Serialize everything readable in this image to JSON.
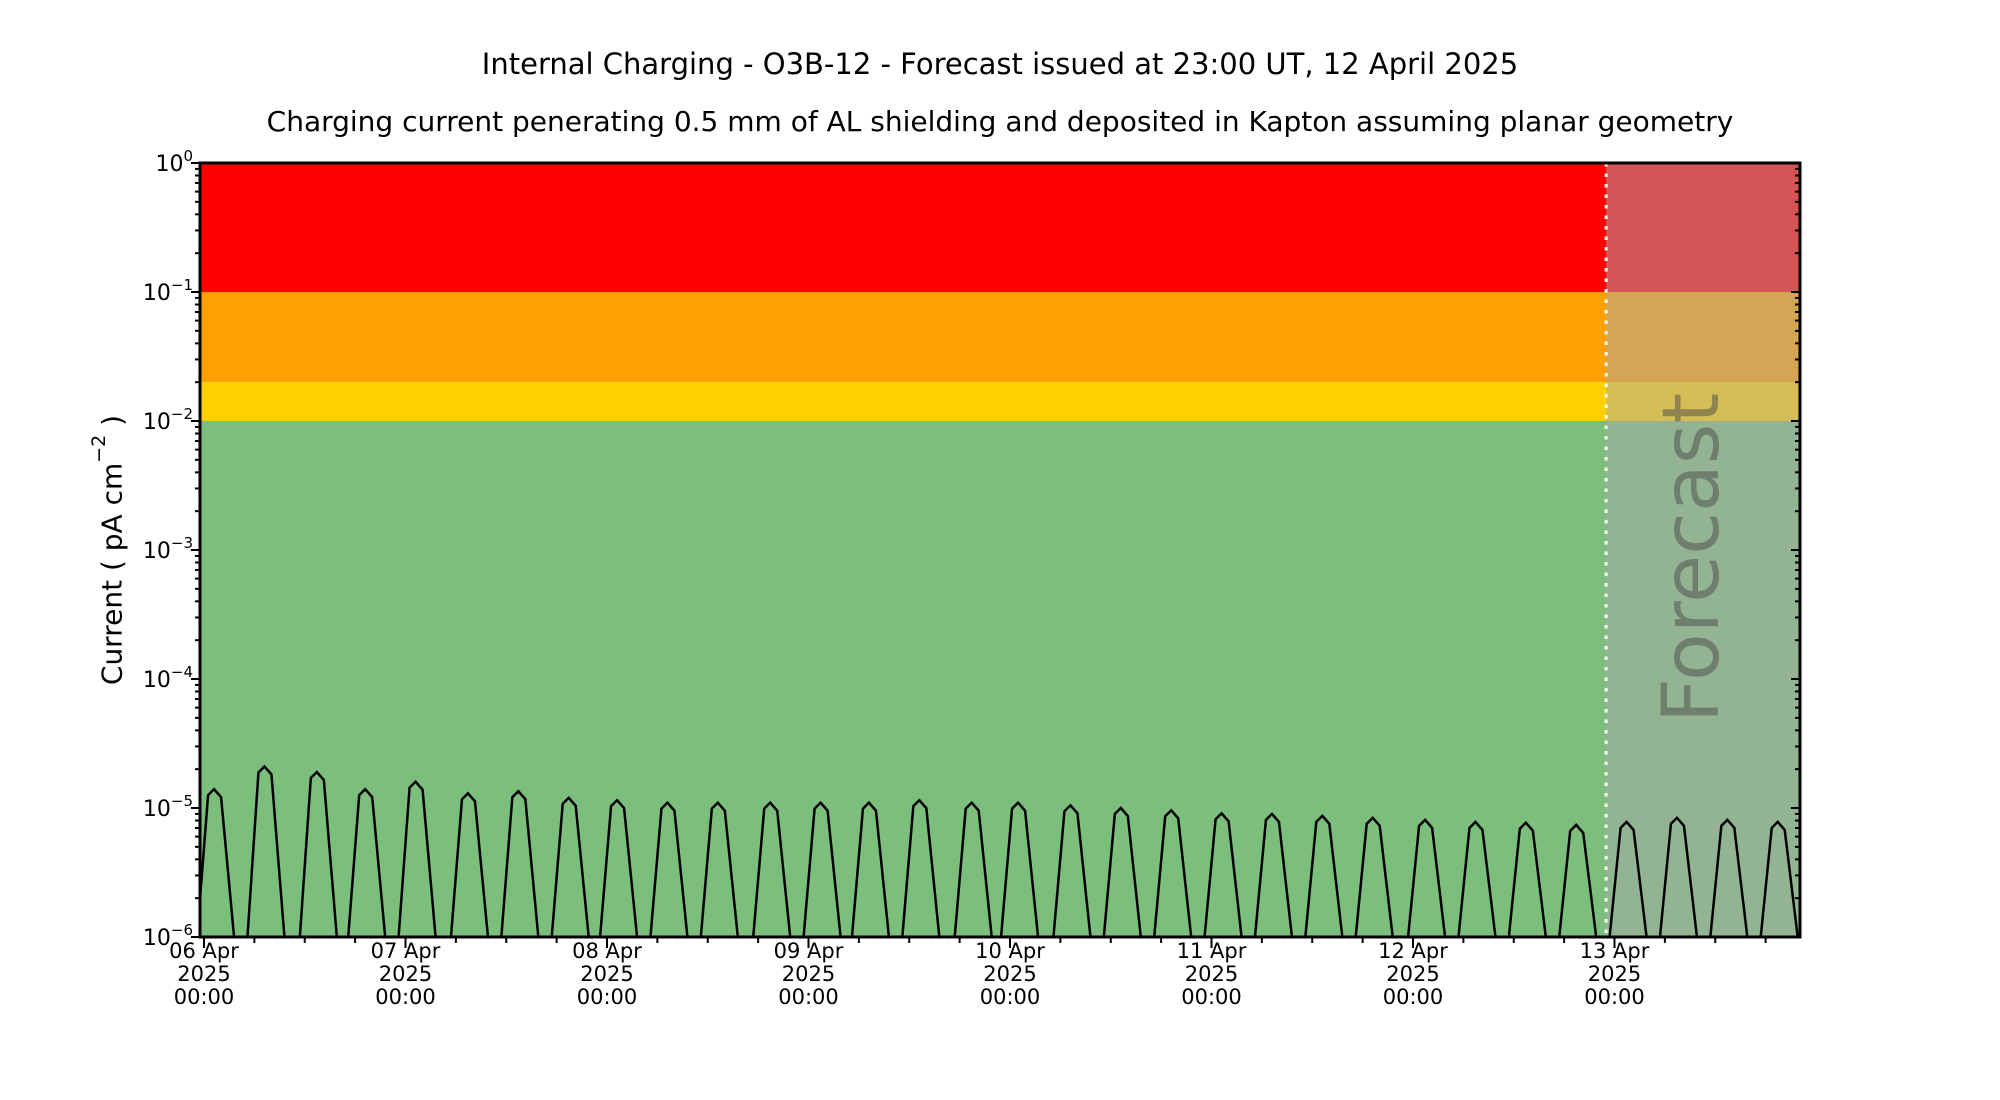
{
  "figure": {
    "title": "Internal Charging - O3B-12 - Forecast issued at 23:00 UT, 12 April 2025",
    "subtitle": "Charging current penerating 0.5 mm of AL shielding and deposited in Kapton assuming planar geometry"
  },
  "chart_data": {
    "type": "line",
    "title": "Internal Charging - O3B-12 - Forecast issued at 23:00 UT, 12 April 2025",
    "subtitle": "Charging current penerating 0.5 mm of AL shielding and deposited in Kapton assuming planar geometry",
    "ylabel": "Current ( pA cm^-2 )",
    "ylabel_parts": {
      "pre": "Current ( pA cm",
      "sup": "−2",
      "post": " )"
    },
    "y_scale": "log",
    "ylim": [
      1e-06,
      1
    ],
    "y_tick_exponents": [
      0,
      -1,
      -2,
      -3,
      -4,
      -5,
      -6
    ],
    "grid": false,
    "legend": "none",
    "x_axis": {
      "tick_step_days": 1,
      "minor_tick_step_days": 0.25,
      "range_days": [
        -0.02,
        7.92
      ],
      "ticks": [
        {
          "day": 0,
          "line1": "06 Apr",
          "line2": "2025",
          "line3": "00:00"
        },
        {
          "day": 1,
          "line1": "07 Apr",
          "line2": "2025",
          "line3": "00:00"
        },
        {
          "day": 2,
          "line1": "08 Apr",
          "line2": "2025",
          "line3": "00:00"
        },
        {
          "day": 3,
          "line1": "09 Apr",
          "line2": "2025",
          "line3": "00:00"
        },
        {
          "day": 4,
          "line1": "10 Apr",
          "line2": "2025",
          "line3": "00:00"
        },
        {
          "day": 5,
          "line1": "11 Apr",
          "line2": "2025",
          "line3": "00:00"
        },
        {
          "day": 6,
          "line1": "12 Apr",
          "line2": "2025",
          "line3": "00:00"
        },
        {
          "day": 7,
          "line1": "13 Apr",
          "line2": "2025",
          "line3": "00:00"
        }
      ]
    },
    "bands": [
      {
        "name": "red-alert",
        "from": 0.1,
        "to": 1.0,
        "color": "#FF0000"
      },
      {
        "name": "orange-alert",
        "from": 0.02,
        "to": 0.1,
        "color": "#FFA000"
      },
      {
        "name": "yellow-alert",
        "from": 0.01,
        "to": 0.02,
        "color": "#FFD000"
      },
      {
        "name": "green-safe",
        "from": 1e-06,
        "to": 0.01,
        "color": "#7CBE7C"
      }
    ],
    "forecast": {
      "label": "Forecast",
      "start_day": 6.9583,
      "start_time": "12 Apr 2025 23:00",
      "overlay_color": "rgba(170,170,170,0.5)",
      "divider_color": "#ffffff",
      "divider_style": "dotted",
      "label_color": "#4a4a4a",
      "label_opacity": 0.5
    },
    "series": {
      "name": "charging-current",
      "unit": "pA cm^-2",
      "line_color": "#000000",
      "baseline_value": 1e-06,
      "peaks": [
        {
          "t": 0.05,
          "v": 1.4e-05
        },
        {
          "t": 0.3,
          "v": 2.1e-05
        },
        {
          "t": 0.56,
          "v": 1.9e-05
        },
        {
          "t": 0.8,
          "v": 1.4e-05
        },
        {
          "t": 1.05,
          "v": 1.6e-05
        },
        {
          "t": 1.31,
          "v": 1.3e-05
        },
        {
          "t": 1.56,
          "v": 1.35e-05
        },
        {
          "t": 1.81,
          "v": 1.2e-05
        },
        {
          "t": 2.05,
          "v": 1.15e-05
        },
        {
          "t": 2.3,
          "v": 1.1e-05
        },
        {
          "t": 2.55,
          "v": 1.1e-05
        },
        {
          "t": 2.81,
          "v": 1.1e-05
        },
        {
          "t": 3.06,
          "v": 1.1e-05
        },
        {
          "t": 3.3,
          "v": 1.1e-05
        },
        {
          "t": 3.55,
          "v": 1.15e-05
        },
        {
          "t": 3.81,
          "v": 1.1e-05
        },
        {
          "t": 4.04,
          "v": 1.1e-05
        },
        {
          "t": 4.3,
          "v": 1.05e-05
        },
        {
          "t": 4.55,
          "v": 1e-05
        },
        {
          "t": 4.8,
          "v": 9.6e-06
        },
        {
          "t": 5.05,
          "v": 9.1e-06
        },
        {
          "t": 5.3,
          "v": 9e-06
        },
        {
          "t": 5.55,
          "v": 8.7e-06
        },
        {
          "t": 5.8,
          "v": 8.4e-06
        },
        {
          "t": 6.06,
          "v": 8.1e-06
        },
        {
          "t": 6.31,
          "v": 7.8e-06
        },
        {
          "t": 6.56,
          "v": 7.7e-06
        },
        {
          "t": 6.81,
          "v": 7.4e-06
        },
        {
          "t": 7.06,
          "v": 7.8e-06
        },
        {
          "t": 7.31,
          "v": 8.4e-06
        },
        {
          "t": 7.56,
          "v": 8.1e-06
        },
        {
          "t": 7.81,
          "v": 7.8e-06
        }
      ]
    }
  }
}
